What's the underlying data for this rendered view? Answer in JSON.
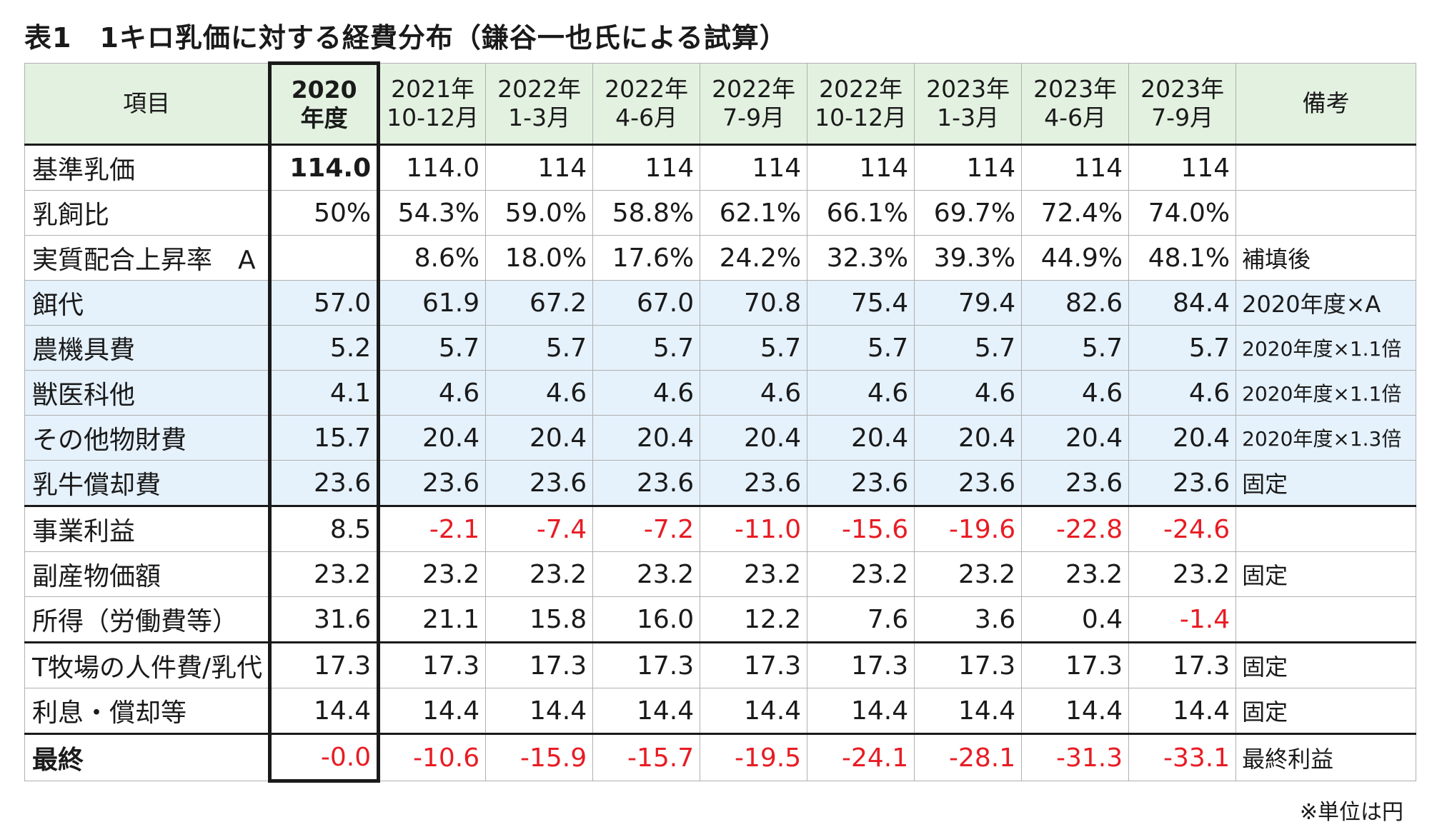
{
  "title": "表1　1キロ乳価に対する経費分布（鎌谷一也氏による試算）",
  "footnote": "※単位は円",
  "headers": [
    {
      "line1": "項目",
      "line2": ""
    },
    {
      "line1": "2020",
      "line2": "年度"
    },
    {
      "line1": "2021年",
      "line2": "10-12月"
    },
    {
      "line1": "2022年",
      "line2": "1-3月"
    },
    {
      "line1": "2022年",
      "line2": "4-6月"
    },
    {
      "line1": "2022年",
      "line2": "7-9月"
    },
    {
      "line1": "2022年",
      "line2": "10-12月"
    },
    {
      "line1": "2023年",
      "line2": "1-3月"
    },
    {
      "line1": "2023年",
      "line2": "4-6月"
    },
    {
      "line1": "2023年",
      "line2": "7-9月"
    },
    {
      "line1": "備考",
      "line2": ""
    }
  ],
  "rows": [
    {
      "label": "基準乳価",
      "values": [
        "114.0",
        "114.0",
        "114",
        "114",
        "114",
        "114",
        "114",
        "114",
        "114"
      ],
      "note": ""
    },
    {
      "label": "乳飼比",
      "values": [
        "50%",
        "54.3%",
        "59.0%",
        "58.8%",
        "62.1%",
        "66.1%",
        "69.7%",
        "72.4%",
        "74.0%"
      ],
      "note": ""
    },
    {
      "label": "実質配合上昇率　A",
      "values": [
        "",
        "8.6%",
        "18.0%",
        "17.6%",
        "24.2%",
        "32.3%",
        "39.3%",
        "44.9%",
        "48.1%"
      ],
      "note": "補填後"
    },
    {
      "label": "餌代",
      "values": [
        "57.0",
        "61.9",
        "67.2",
        "67.0",
        "70.8",
        "75.4",
        "79.4",
        "82.6",
        "84.4"
      ],
      "note": "2020年度×A"
    },
    {
      "label": "農機具費",
      "values": [
        "5.2",
        "5.7",
        "5.7",
        "5.7",
        "5.7",
        "5.7",
        "5.7",
        "5.7",
        "5.7"
      ],
      "note": "2020年度×1.1倍"
    },
    {
      "label": "獣医科他",
      "values": [
        "4.1",
        "4.6",
        "4.6",
        "4.6",
        "4.6",
        "4.6",
        "4.6",
        "4.6",
        "4.6"
      ],
      "note": "2020年度×1.1倍"
    },
    {
      "label": "その他物財費",
      "values": [
        "15.7",
        "20.4",
        "20.4",
        "20.4",
        "20.4",
        "20.4",
        "20.4",
        "20.4",
        "20.4"
      ],
      "note": "2020年度×1.3倍"
    },
    {
      "label": "乳牛償却費",
      "values": [
        "23.6",
        "23.6",
        "23.6",
        "23.6",
        "23.6",
        "23.6",
        "23.6",
        "23.6",
        "23.6"
      ],
      "note": "固定"
    },
    {
      "label": "事業利益",
      "values": [
        "8.5",
        "-2.1",
        "-7.4",
        "-7.2",
        "-11.0",
        "-15.6",
        "-19.6",
        "-22.8",
        "-24.6"
      ],
      "note": ""
    },
    {
      "label": "副産物価額",
      "values": [
        "23.2",
        "23.2",
        "23.2",
        "23.2",
        "23.2",
        "23.2",
        "23.2",
        "23.2",
        "23.2"
      ],
      "note": "固定"
    },
    {
      "label": "所得（労働費等）",
      "values": [
        "31.6",
        "21.1",
        "15.8",
        "16.0",
        "12.2",
        "7.6",
        "3.6",
        "0.4",
        "-1.4"
      ],
      "note": ""
    },
    {
      "label": "T牧場の人件費/乳代",
      "values": [
        "17.3",
        "17.3",
        "17.3",
        "17.3",
        "17.3",
        "17.3",
        "17.3",
        "17.3",
        "17.3"
      ],
      "note": "固定"
    },
    {
      "label": "利息・償却等",
      "values": [
        "14.4",
        "14.4",
        "14.4",
        "14.4",
        "14.4",
        "14.4",
        "14.4",
        "14.4",
        "14.4"
      ],
      "note": "固定"
    },
    {
      "label": "最終",
      "values": [
        "-0.0",
        "-10.6",
        "-15.9",
        "-15.7",
        "-19.5",
        "-24.1",
        "-28.1",
        "-31.3",
        "-33.1"
      ],
      "note": "最終利益"
    }
  ],
  "colors": {
    "header_bg": "#e3f1e1",
    "row_highlight_bg": "#e5f1fb",
    "negative_text": "#e81c24"
  }
}
